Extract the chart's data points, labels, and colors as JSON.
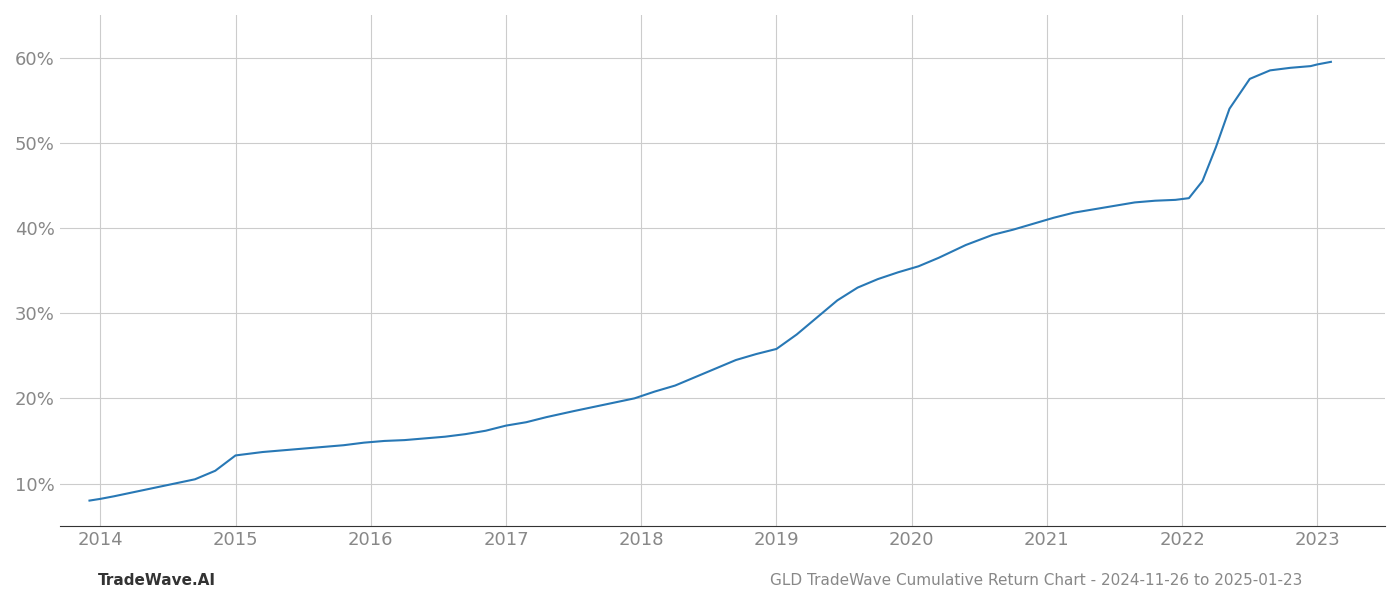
{
  "title": "",
  "footer_left": "TradeWave.AI",
  "footer_right": "GLD TradeWave Cumulative Return Chart - 2024-11-26 to 2025-01-23",
  "line_color": "#2878b5",
  "background_color": "#ffffff",
  "grid_color": "#cccccc",
  "x_values": [
    2013.92,
    2014.0,
    2014.1,
    2014.25,
    2014.4,
    2014.55,
    2014.7,
    2014.85,
    2015.0,
    2015.1,
    2015.2,
    2015.35,
    2015.5,
    2015.65,
    2015.8,
    2015.95,
    2016.1,
    2016.25,
    2016.4,
    2016.55,
    2016.7,
    2016.85,
    2017.0,
    2017.15,
    2017.3,
    2017.5,
    2017.65,
    2017.8,
    2017.95,
    2018.1,
    2018.25,
    2018.4,
    2018.55,
    2018.7,
    2018.85,
    2019.0,
    2019.15,
    2019.3,
    2019.45,
    2019.6,
    2019.75,
    2019.9,
    2020.05,
    2020.2,
    2020.4,
    2020.6,
    2020.75,
    2020.9,
    2021.05,
    2021.2,
    2021.35,
    2021.5,
    2021.65,
    2021.8,
    2021.95,
    2022.05,
    2022.15,
    2022.25,
    2022.35,
    2022.5,
    2022.65,
    2022.8,
    2022.95,
    2023.0,
    2023.1
  ],
  "y_values": [
    8.0,
    8.2,
    8.5,
    9.0,
    9.5,
    10.0,
    10.5,
    11.5,
    13.3,
    13.5,
    13.7,
    13.9,
    14.1,
    14.3,
    14.5,
    14.8,
    15.0,
    15.1,
    15.3,
    15.5,
    15.8,
    16.2,
    16.8,
    17.2,
    17.8,
    18.5,
    19.0,
    19.5,
    20.0,
    20.8,
    21.5,
    22.5,
    23.5,
    24.5,
    25.2,
    25.8,
    27.5,
    29.5,
    31.5,
    33.0,
    34.0,
    34.8,
    35.5,
    36.5,
    38.0,
    39.2,
    39.8,
    40.5,
    41.2,
    41.8,
    42.2,
    42.6,
    43.0,
    43.2,
    43.3,
    43.5,
    45.5,
    49.5,
    54.0,
    57.5,
    58.5,
    58.8,
    59.0,
    59.2,
    59.5
  ],
  "xlim": [
    2013.7,
    2023.5
  ],
  "ylim": [
    5,
    65
  ],
  "yticks": [
    10,
    20,
    30,
    40,
    50,
    60
  ],
  "xticks": [
    2014,
    2015,
    2016,
    2017,
    2018,
    2019,
    2020,
    2021,
    2022,
    2023
  ],
  "line_width": 1.5,
  "tick_label_color": "#888888",
  "footer_fontsize": 11,
  "tick_fontsize": 13,
  "spine_color": "#333333"
}
